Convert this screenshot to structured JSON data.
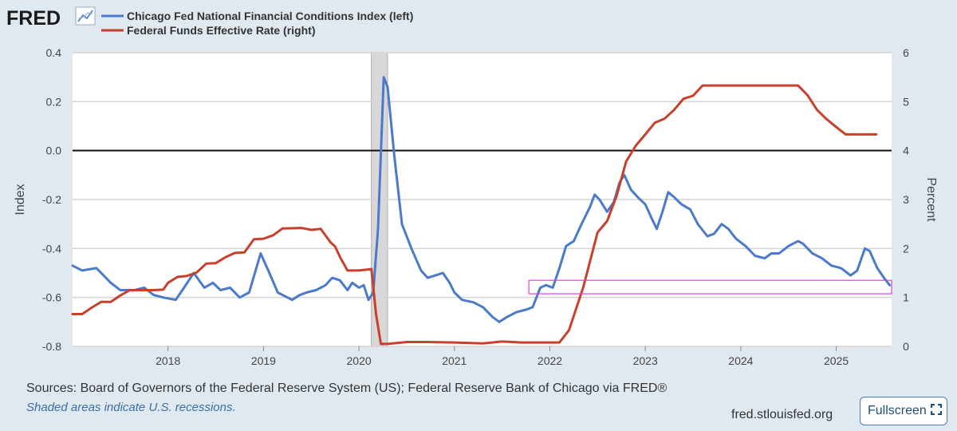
{
  "header": {
    "logo_text": "FRED",
    "legend": [
      {
        "label": "Chicago Fed National Financial Conditions Index (left)",
        "color": "#4a7ac9"
      },
      {
        "label": "Federal Funds Effective Rate (right)",
        "color": "#c8402b"
      }
    ]
  },
  "chart_data": {
    "type": "line",
    "xlim": [
      2017.0,
      2025.58
    ],
    "y_left": {
      "label": "Index",
      "range": [
        -0.8,
        0.4
      ],
      "ticks": [
        "0.4",
        "0.2",
        "0.0",
        "-0.2",
        "-0.4",
        "-0.6",
        "-0.8"
      ],
      "values": [
        0.4,
        0.2,
        0.0,
        -0.2,
        -0.4,
        -0.6,
        -0.8
      ]
    },
    "y_right": {
      "label": "Percent",
      "range": [
        0,
        6
      ],
      "ticks": [
        "6",
        "5",
        "4",
        "3",
        "2",
        "1",
        "0"
      ],
      "values": [
        6,
        5,
        4,
        3,
        2,
        1,
        0
      ]
    },
    "x_ticks": [
      {
        "label": "2018",
        "x": 2018
      },
      {
        "label": "2019",
        "x": 2019
      },
      {
        "label": "2020",
        "x": 2020
      },
      {
        "label": "2021",
        "x": 2021
      },
      {
        "label": "2022",
        "x": 2022
      },
      {
        "label": "2023",
        "x": 2023
      },
      {
        "label": "2024",
        "x": 2024
      },
      {
        "label": "2025",
        "x": 2025
      }
    ],
    "recessions": [
      {
        "start": 2020.13,
        "end": 2020.3
      }
    ],
    "highlight_box": {
      "x_start": 2021.78,
      "x_end": 2025.58,
      "y_top": -0.53,
      "y_bottom": -0.585,
      "color": "#e040e0"
    },
    "series": [
      {
        "name": "Chicago Fed National Financial Conditions Index (left)",
        "axis": "left",
        "color": "#4a7ac9",
        "points": [
          [
            2017.0,
            -0.47
          ],
          [
            2017.1,
            -0.49
          ],
          [
            2017.25,
            -0.48
          ],
          [
            2017.4,
            -0.54
          ],
          [
            2017.5,
            -0.57
          ],
          [
            2017.65,
            -0.57
          ],
          [
            2017.75,
            -0.56
          ],
          [
            2017.85,
            -0.59
          ],
          [
            2017.95,
            -0.6
          ],
          [
            2018.08,
            -0.61
          ],
          [
            2018.15,
            -0.57
          ],
          [
            2018.27,
            -0.5
          ],
          [
            2018.38,
            -0.56
          ],
          [
            2018.47,
            -0.54
          ],
          [
            2018.55,
            -0.57
          ],
          [
            2018.65,
            -0.56
          ],
          [
            2018.75,
            -0.6
          ],
          [
            2018.85,
            -0.58
          ],
          [
            2018.97,
            -0.42
          ],
          [
            2019.05,
            -0.49
          ],
          [
            2019.15,
            -0.58
          ],
          [
            2019.3,
            -0.61
          ],
          [
            2019.38,
            -0.59
          ],
          [
            2019.45,
            -0.58
          ],
          [
            2019.55,
            -0.57
          ],
          [
            2019.65,
            -0.55
          ],
          [
            2019.72,
            -0.52
          ],
          [
            2019.8,
            -0.53
          ],
          [
            2019.88,
            -0.57
          ],
          [
            2019.93,
            -0.54
          ],
          [
            2020.0,
            -0.56
          ],
          [
            2020.05,
            -0.55
          ],
          [
            2020.1,
            -0.61
          ],
          [
            2020.15,
            -0.58
          ],
          [
            2020.2,
            -0.32
          ],
          [
            2020.26,
            0.3
          ],
          [
            2020.3,
            0.26
          ],
          [
            2020.37,
            -0.02
          ],
          [
            2020.45,
            -0.3
          ],
          [
            2020.55,
            -0.4
          ],
          [
            2020.65,
            -0.49
          ],
          [
            2020.72,
            -0.52
          ],
          [
            2020.8,
            -0.51
          ],
          [
            2020.88,
            -0.5
          ],
          [
            2020.95,
            -0.54
          ],
          [
            2021.0,
            -0.58
          ],
          [
            2021.08,
            -0.61
          ],
          [
            2021.2,
            -0.62
          ],
          [
            2021.3,
            -0.64
          ],
          [
            2021.4,
            -0.68
          ],
          [
            2021.47,
            -0.7
          ],
          [
            2021.55,
            -0.68
          ],
          [
            2021.65,
            -0.66
          ],
          [
            2021.75,
            -0.65
          ],
          [
            2021.82,
            -0.64
          ],
          [
            2021.9,
            -0.56
          ],
          [
            2021.96,
            -0.55
          ],
          [
            2022.03,
            -0.56
          ],
          [
            2022.1,
            -0.48
          ],
          [
            2022.17,
            -0.39
          ],
          [
            2022.25,
            -0.37
          ],
          [
            2022.32,
            -0.31
          ],
          [
            2022.42,
            -0.23
          ],
          [
            2022.47,
            -0.18
          ],
          [
            2022.52,
            -0.2
          ],
          [
            2022.6,
            -0.25
          ],
          [
            2022.67,
            -0.21
          ],
          [
            2022.73,
            -0.13
          ],
          [
            2022.78,
            -0.1
          ],
          [
            2022.85,
            -0.16
          ],
          [
            2022.92,
            -0.19
          ],
          [
            2023.0,
            -0.22
          ],
          [
            2023.07,
            -0.28
          ],
          [
            2023.12,
            -0.32
          ],
          [
            2023.18,
            -0.25
          ],
          [
            2023.24,
            -0.17
          ],
          [
            2023.3,
            -0.19
          ],
          [
            2023.38,
            -0.22
          ],
          [
            2023.47,
            -0.24
          ],
          [
            2023.55,
            -0.3
          ],
          [
            2023.65,
            -0.35
          ],
          [
            2023.72,
            -0.34
          ],
          [
            2023.8,
            -0.3
          ],
          [
            2023.87,
            -0.32
          ],
          [
            2023.95,
            -0.36
          ],
          [
            2024.05,
            -0.39
          ],
          [
            2024.15,
            -0.43
          ],
          [
            2024.25,
            -0.44
          ],
          [
            2024.32,
            -0.42
          ],
          [
            2024.4,
            -0.42
          ],
          [
            2024.5,
            -0.39
          ],
          [
            2024.6,
            -0.37
          ],
          [
            2024.65,
            -0.38
          ],
          [
            2024.75,
            -0.42
          ],
          [
            2024.85,
            -0.44
          ],
          [
            2024.95,
            -0.47
          ],
          [
            2025.05,
            -0.48
          ],
          [
            2025.15,
            -0.51
          ],
          [
            2025.22,
            -0.49
          ],
          [
            2025.3,
            -0.4
          ],
          [
            2025.35,
            -0.41
          ],
          [
            2025.43,
            -0.48
          ],
          [
            2025.5,
            -0.52
          ],
          [
            2025.56,
            -0.55
          ]
        ]
      },
      {
        "name": "Federal Funds Effective Rate (right)",
        "axis": "right",
        "color": "#c8402b",
        "points": [
          [
            2017.0,
            0.66
          ],
          [
            2017.1,
            0.66
          ],
          [
            2017.2,
            0.79
          ],
          [
            2017.3,
            0.91
          ],
          [
            2017.4,
            0.91
          ],
          [
            2017.5,
            1.04
          ],
          [
            2017.6,
            1.15
          ],
          [
            2017.7,
            1.15
          ],
          [
            2017.85,
            1.15
          ],
          [
            2017.95,
            1.16
          ],
          [
            2018.0,
            1.3
          ],
          [
            2018.1,
            1.42
          ],
          [
            2018.2,
            1.44
          ],
          [
            2018.3,
            1.51
          ],
          [
            2018.4,
            1.69
          ],
          [
            2018.5,
            1.7
          ],
          [
            2018.6,
            1.82
          ],
          [
            2018.7,
            1.91
          ],
          [
            2018.8,
            1.92
          ],
          [
            2018.9,
            2.19
          ],
          [
            2019.0,
            2.2
          ],
          [
            2019.1,
            2.27
          ],
          [
            2019.2,
            2.41
          ],
          [
            2019.4,
            2.42
          ],
          [
            2019.5,
            2.38
          ],
          [
            2019.6,
            2.4
          ],
          [
            2019.7,
            2.13
          ],
          [
            2019.75,
            2.04
          ],
          [
            2019.8,
            1.83
          ],
          [
            2019.88,
            1.55
          ],
          [
            2020.0,
            1.55
          ],
          [
            2020.13,
            1.58
          ],
          [
            2020.18,
            0.65
          ],
          [
            2020.23,
            0.05
          ],
          [
            2020.3,
            0.05
          ],
          [
            2020.5,
            0.09
          ],
          [
            2020.7,
            0.09
          ],
          [
            2021.0,
            0.08
          ],
          [
            2021.3,
            0.06
          ],
          [
            2021.5,
            0.1
          ],
          [
            2021.7,
            0.08
          ],
          [
            2021.9,
            0.08
          ],
          [
            2022.1,
            0.08
          ],
          [
            2022.2,
            0.33
          ],
          [
            2022.35,
            1.21
          ],
          [
            2022.5,
            2.33
          ],
          [
            2022.6,
            2.56
          ],
          [
            2022.7,
            3.08
          ],
          [
            2022.8,
            3.78
          ],
          [
            2022.9,
            4.1
          ],
          [
            2023.0,
            4.33
          ],
          [
            2023.1,
            4.57
          ],
          [
            2023.2,
            4.65
          ],
          [
            2023.3,
            4.83
          ],
          [
            2023.4,
            5.06
          ],
          [
            2023.5,
            5.12
          ],
          [
            2023.6,
            5.33
          ],
          [
            2024.0,
            5.33
          ],
          [
            2024.5,
            5.33
          ],
          [
            2024.6,
            5.33
          ],
          [
            2024.7,
            5.13
          ],
          [
            2024.8,
            4.83
          ],
          [
            2024.9,
            4.64
          ],
          [
            2025.0,
            4.48
          ],
          [
            2025.1,
            4.33
          ],
          [
            2025.42,
            4.33
          ]
        ]
      }
    ]
  },
  "footer": {
    "sources": "Sources: Board of Governors of the Federal Reserve System (US); Federal Reserve Bank of Chicago via FRED®",
    "shaded_note": "Shaded areas indicate U.S. recessions.",
    "url": "fred.stlouisfed.org",
    "fullscreen_label": "Fullscreen"
  }
}
